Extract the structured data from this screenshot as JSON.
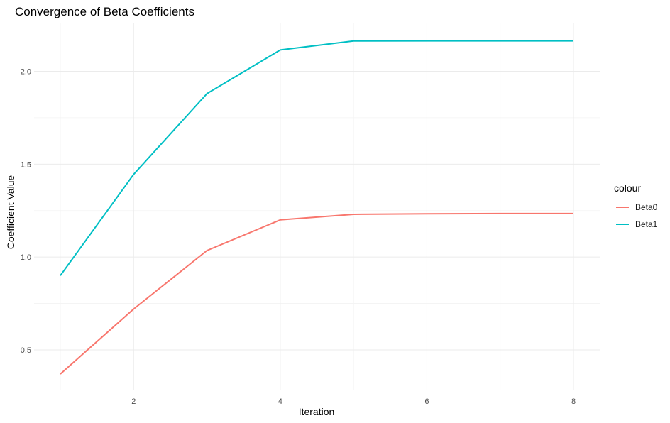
{
  "chart_data": {
    "type": "line",
    "title": "Convergence of Beta Coefficients",
    "xlabel": "Iteration",
    "ylabel": "Coefficient Value",
    "x": [
      1,
      2,
      3,
      4,
      5,
      6,
      7,
      8
    ],
    "xlim": [
      1,
      8
    ],
    "ylim": [
      0.37,
      2.17
    ],
    "xticks": [
      2,
      4,
      6,
      8
    ],
    "xtick_labels": [
      "2",
      "4",
      "6",
      "8"
    ],
    "yticks": [
      0.5,
      1.0,
      1.5,
      2.0
    ],
    "ytick_labels": [
      "0.5",
      "1.0",
      "1.5",
      "2.0"
    ],
    "grid": true,
    "legend": {
      "title": "colour",
      "position": "right"
    },
    "series": [
      {
        "name": "Beta0",
        "color": "#F8766D",
        "values": [
          0.37,
          0.72,
          1.035,
          1.2,
          1.23,
          1.233,
          1.234,
          1.234
        ]
      },
      {
        "name": "Beta1",
        "color": "#00BFC4",
        "values": [
          0.9,
          1.445,
          1.88,
          2.115,
          2.163,
          2.164,
          2.164,
          2.164
        ]
      }
    ]
  }
}
